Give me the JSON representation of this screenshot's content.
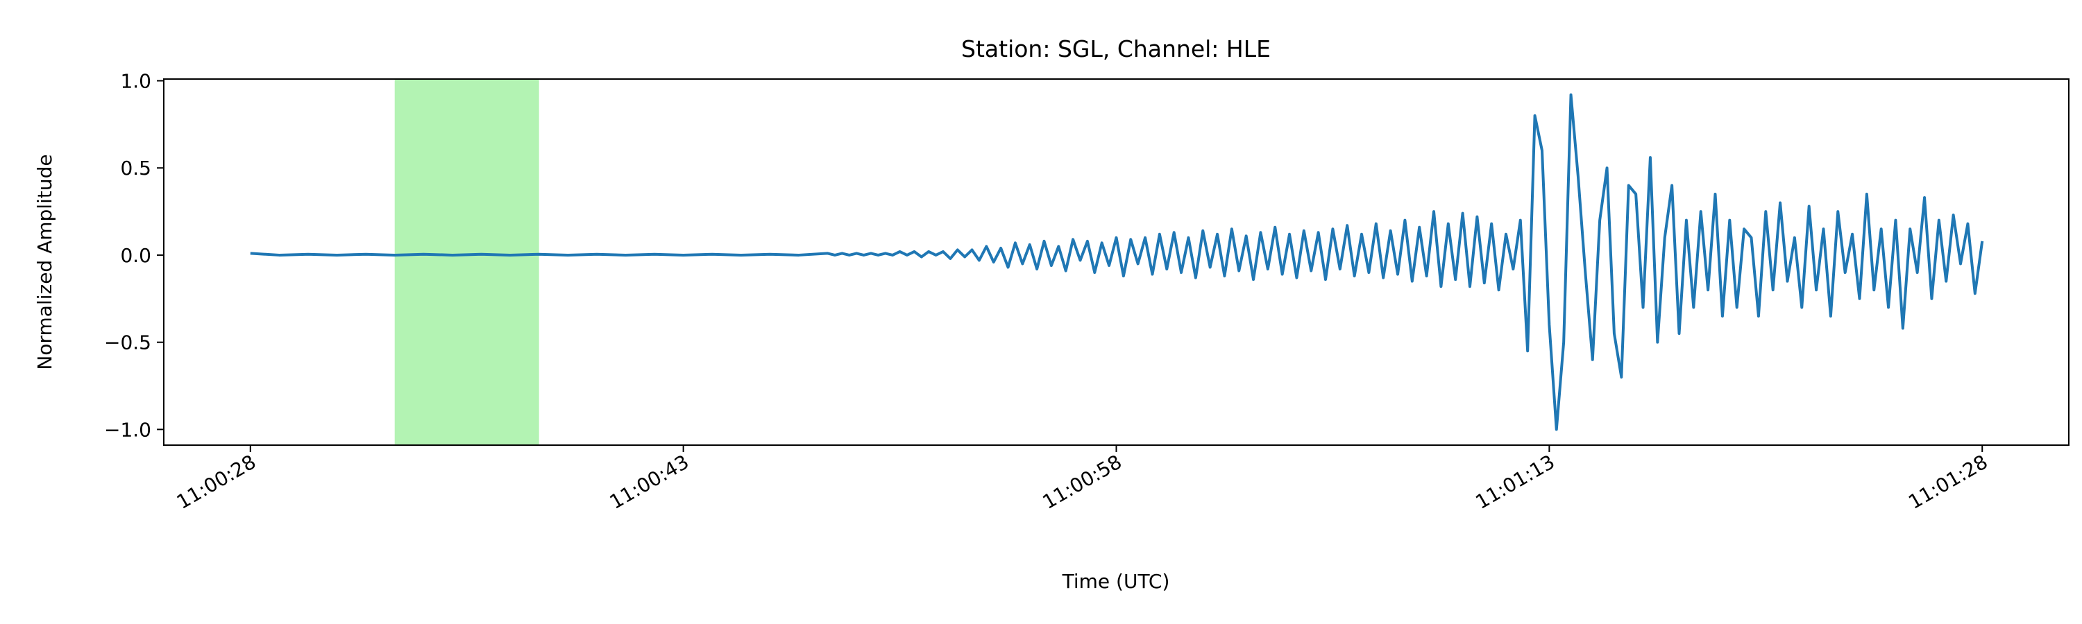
{
  "chart_data": {
    "type": "line",
    "title": "Station: SGL, Channel: HLE",
    "xlabel": "Time (UTC)",
    "ylabel": "Normalized Amplitude",
    "color": "#1f77b4",
    "x": [
      0,
      1,
      2,
      3,
      4,
      5,
      6,
      7,
      8,
      9,
      10,
      11,
      12,
      13,
      14,
      15,
      16,
      17,
      18,
      19,
      20,
      20.25,
      20.5,
      20.75,
      21,
      21.25,
      21.5,
      21.75,
      22,
      22.25,
      22.5,
      22.75,
      23,
      23.25,
      23.5,
      23.75,
      24,
      24.25,
      24.5,
      24.75,
      25,
      25.25,
      25.5,
      25.75,
      26,
      26.25,
      26.5,
      26.75,
      27,
      27.25,
      27.5,
      27.75,
      28,
      28.25,
      28.5,
      28.75,
      29,
      29.25,
      29.5,
      29.75,
      30,
      30.25,
      30.5,
      30.75,
      31,
      31.25,
      31.5,
      31.75,
      32,
      32.25,
      32.5,
      32.75,
      33,
      33.25,
      33.5,
      33.75,
      34,
      34.25,
      34.5,
      34.75,
      35,
      35.25,
      35.5,
      35.75,
      36,
      36.25,
      36.5,
      36.75,
      37,
      37.25,
      37.5,
      37.75,
      38,
      38.25,
      38.5,
      38.75,
      39,
      39.25,
      39.5,
      39.75,
      40,
      40.25,
      40.5,
      40.75,
      41,
      41.25,
      41.5,
      41.75,
      42,
      42.25,
      42.5,
      42.75,
      43,
      43.25,
      43.5,
      43.75,
      44,
      44.25,
      44.5,
      44.75,
      45,
      45.25,
      45.5,
      45.75,
      46,
      46.25,
      46.5,
      46.75,
      47,
      47.25,
      47.5,
      47.75,
      48,
      48.25,
      48.5,
      48.75,
      49,
      49.25,
      49.5,
      49.75,
      50,
      50.25,
      50.5,
      50.75,
      51,
      51.25,
      51.5,
      51.75,
      52,
      52.25,
      52.5,
      52.75,
      53,
      53.25,
      53.5,
      53.75,
      54,
      54.25,
      54.5,
      54.75,
      55,
      55.25,
      55.5,
      55.75,
      56,
      56.25,
      56.5,
      56.75,
      57,
      57.25,
      57.5,
      57.75,
      58,
      58.25,
      58.5,
      58.75,
      59,
      59.25,
      59.5,
      59.75,
      60
    ],
    "values": [
      0.01,
      0,
      0.005,
      0,
      0.005,
      0,
      0.005,
      0,
      0.005,
      0,
      0.005,
      0,
      0.005,
      0,
      0.005,
      0,
      0.005,
      0,
      0.005,
      0,
      0.01,
      0,
      0.01,
      0,
      0.01,
      0,
      0.01,
      0,
      0.01,
      0,
      0.02,
      0,
      0.02,
      -0.01,
      0.02,
      0,
      0.02,
      -0.02,
      0.03,
      -0.01,
      0.03,
      -0.03,
      0.05,
      -0.04,
      0.04,
      -0.07,
      0.07,
      -0.05,
      0.06,
      -0.08,
      0.08,
      -0.06,
      0.05,
      -0.09,
      0.09,
      -0.03,
      0.08,
      -0.1,
      0.07,
      -0.06,
      0.1,
      -0.12,
      0.09,
      -0.05,
      0.1,
      -0.11,
      0.12,
      -0.08,
      0.13,
      -0.1,
      0.1,
      -0.13,
      0.14,
      -0.07,
      0.12,
      -0.12,
      0.15,
      -0.09,
      0.11,
      -0.14,
      0.13,
      -0.08,
      0.16,
      -0.11,
      0.12,
      -0.13,
      0.14,
      -0.09,
      0.13,
      -0.14,
      0.15,
      -0.08,
      0.17,
      -0.12,
      0.12,
      -0.1,
      0.18,
      -0.13,
      0.14,
      -0.11,
      0.2,
      -0.15,
      0.16,
      -0.12,
      0.25,
      -0.18,
      0.18,
      -0.14,
      0.24,
      -0.18,
      0.22,
      -0.16,
      0.18,
      -0.2,
      0.12,
      -0.08,
      0.2,
      -0.55,
      0.8,
      0.6,
      -0.4,
      -1.0,
      -0.5,
      0.92,
      0.45,
      -0.1,
      -0.6,
      0.2,
      0.5,
      -0.45,
      -0.7,
      0.4,
      0.35,
      -0.3,
      0.56,
      -0.5,
      0.1,
      0.4,
      -0.45,
      0.2,
      -0.3,
      0.25,
      -0.2,
      0.35,
      -0.35,
      0.2,
      -0.3,
      0.15,
      0.1,
      -0.35,
      0.25,
      -0.2,
      0.3,
      -0.15,
      0.1,
      -0.3,
      0.28,
      -0.2,
      0.15,
      -0.35,
      0.25,
      -0.1,
      0.12,
      -0.25,
      0.35,
      -0.2,
      0.15,
      -0.3,
      0.2,
      -0.42,
      0.15,
      -0.1,
      0.33,
      -0.25,
      0.2,
      -0.15,
      0.23,
      -0.05,
      0.18,
      -0.22,
      0.08
    ],
    "xlim": [
      -3,
      63
    ],
    "xticks": [
      {
        "value": 0,
        "label": "11:00:28"
      },
      {
        "value": 15,
        "label": "11:00:43"
      },
      {
        "value": 30,
        "label": "11:00:58"
      },
      {
        "value": 45,
        "label": "11:01:13"
      },
      {
        "value": 60,
        "label": "11:01:28"
      }
    ],
    "ylim": [
      -1.09,
      1.01
    ],
    "yticks": [
      {
        "value": 1,
        "label": "1.0"
      },
      0.5,
      {
        "value": 0,
        "label": "0.0"
      },
      {
        "value": -0.5,
        "label": "−0.5"
      },
      {
        "value": -1,
        "label": "−1.0"
      }
    ],
    "spans": [
      {
        "start": 5,
        "end": 10,
        "color": "#b3f3b3"
      }
    ]
  }
}
